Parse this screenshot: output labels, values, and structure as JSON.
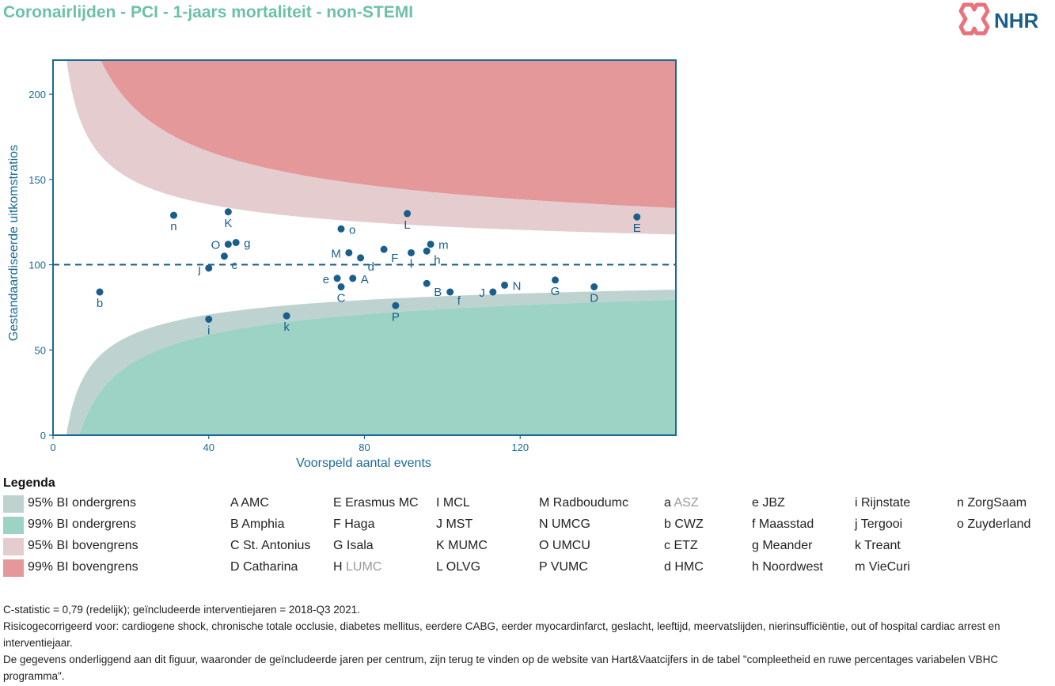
{
  "title": "Coronairlijden - PCI - 1-jaars mortaliteit - non-STEMI",
  "logo": {
    "text": "NHR"
  },
  "colors": {
    "title": "#6cc1a9",
    "point": "#1a5f8c",
    "axis": "#1a6a94",
    "band95_lower": "#bed3cf",
    "band99_lower": "#9dd3c4",
    "band95_upper": "#e5cccf",
    "band99_upper": "#e49899",
    "logo_red": "#e8737c",
    "logo_blue": "#1a5f8c"
  },
  "chart_data": {
    "type": "scatter",
    "xlabel": "Voorspeld aantal events",
    "ylabel": "Gestandaardiseerde uitkomstratios",
    "xlim": [
      0,
      160
    ],
    "ylim": [
      0,
      220
    ],
    "xticks": [
      0,
      40,
      80,
      120
    ],
    "yticks": [
      0,
      50,
      100,
      150,
      200
    ],
    "reference_line": 100,
    "points": [
      {
        "label": "n",
        "x": 31,
        "y": 129,
        "label_pos": "below"
      },
      {
        "label": "K",
        "x": 45,
        "y": 131,
        "label_pos": "below"
      },
      {
        "label": "L",
        "x": 91,
        "y": 130,
        "label_pos": "below"
      },
      {
        "label": "E",
        "x": 150,
        "y": 128,
        "label_pos": "below"
      },
      {
        "label": "o",
        "x": 74,
        "y": 121,
        "label_pos": "right"
      },
      {
        "label": "O",
        "x": 45,
        "y": 112,
        "label_pos": "left"
      },
      {
        "label": "g",
        "x": 47,
        "y": 113,
        "label_pos": "right"
      },
      {
        "label": "m",
        "x": 97,
        "y": 112,
        "label_pos": "right"
      },
      {
        "label": "F",
        "x": 85,
        "y": 109,
        "label_pos": "below-right"
      },
      {
        "label": "M",
        "x": 76,
        "y": 107,
        "label_pos": "left"
      },
      {
        "label": "d",
        "x": 79,
        "y": 104,
        "label_pos": "below-right"
      },
      {
        "label": "l",
        "x": 92,
        "y": 107,
        "label_pos": "below"
      },
      {
        "label": "h",
        "x": 96,
        "y": 108,
        "label_pos": "below-right"
      },
      {
        "label": "c",
        "x": 44,
        "y": 105,
        "label_pos": "below-right"
      },
      {
        "label": "j",
        "x": 40,
        "y": 98,
        "label_pos": "left"
      },
      {
        "label": "e",
        "x": 73,
        "y": 92,
        "label_pos": "left"
      },
      {
        "label": "A",
        "x": 77,
        "y": 92,
        "label_pos": "right"
      },
      {
        "label": "C",
        "x": 74,
        "y": 87,
        "label_pos": "below"
      },
      {
        "label": "B",
        "x": 96,
        "y": 89,
        "label_pos": "below-right"
      },
      {
        "label": "f",
        "x": 102,
        "y": 84,
        "label_pos": "below-right"
      },
      {
        "label": "J",
        "x": 113,
        "y": 84,
        "label_pos": "left"
      },
      {
        "label": "N",
        "x": 116,
        "y": 88,
        "label_pos": "right"
      },
      {
        "label": "G",
        "x": 129,
        "y": 91,
        "label_pos": "below"
      },
      {
        "label": "D",
        "x": 139,
        "y": 87,
        "label_pos": "below"
      },
      {
        "label": "b",
        "x": 12,
        "y": 84,
        "label_pos": "below"
      },
      {
        "label": "P",
        "x": 88,
        "y": 76,
        "label_pos": "below"
      },
      {
        "label": "i",
        "x": 40,
        "y": 68,
        "label_pos": "below"
      },
      {
        "label": "k",
        "x": 60,
        "y": 70,
        "label_pos": "below"
      }
    ]
  },
  "legend": {
    "title": "Legenda",
    "bands": [
      {
        "label": "95% BI ondergrens",
        "color": "#bed3cf"
      },
      {
        "label": "99% BI ondergrens",
        "color": "#9dd3c4"
      },
      {
        "label": "95% BI bovengrens",
        "color": "#e5cccf"
      },
      {
        "label": "99% BI bovengrens",
        "color": "#e49899"
      }
    ],
    "hospitals": [
      [
        {
          "code": "A",
          "name": "AMC"
        },
        {
          "code": "B",
          "name": "Amphia"
        },
        {
          "code": "C",
          "name": "St. Antonius"
        },
        {
          "code": "D",
          "name": "Catharina"
        }
      ],
      [
        {
          "code": "E",
          "name": "Erasmus MC"
        },
        {
          "code": "F",
          "name": "Haga"
        },
        {
          "code": "G",
          "name": "Isala"
        },
        {
          "code": "H",
          "name": "LUMC",
          "grey": true
        }
      ],
      [
        {
          "code": "I",
          "name": "MCL"
        },
        {
          "code": "J",
          "name": "MST"
        },
        {
          "code": "K",
          "name": "MUMC"
        },
        {
          "code": "L",
          "name": "OLVG"
        }
      ],
      [
        {
          "code": "M",
          "name": "Radboudumc"
        },
        {
          "code": "N",
          "name": "UMCG"
        },
        {
          "code": "O",
          "name": "UMCU"
        },
        {
          "code": "P",
          "name": "VUMC"
        }
      ],
      [
        {
          "code": "a",
          "name": "ASZ",
          "grey": true
        },
        {
          "code": "b",
          "name": "CWZ"
        },
        {
          "code": "c",
          "name": "ETZ"
        },
        {
          "code": "d",
          "name": "HMC"
        }
      ],
      [
        {
          "code": "e",
          "name": "JBZ"
        },
        {
          "code": "f",
          "name": "Maasstad"
        },
        {
          "code": "g",
          "name": "Meander"
        },
        {
          "code": "h",
          "name": "Noordwest"
        }
      ],
      [
        {
          "code": "i",
          "name": "Rijnstate"
        },
        {
          "code": "j",
          "name": "Tergooi"
        },
        {
          "code": "k",
          "name": "Treant"
        },
        {
          "code": "m",
          "name": "VieCuri"
        }
      ],
      [
        {
          "code": "n",
          "name": "ZorgSaam"
        },
        {
          "code": "o",
          "name": "Zuyderland"
        }
      ]
    ]
  },
  "footnotes": [
    "C-statistic =  0,79 (redelijk); geïncludeerde interventiejaren = 2018-Q3 2021.",
    "Risicogecorrigeerd voor: cardiogene shock, chronische totale occlusie, diabetes mellitus, eerdere CABG, eerder myocardinfarct, geslacht, leeftijd, meervatslijden, nierinsufficiëntie, out of hospital cardiac arrest en interventiejaar.",
    "De gegevens onderliggend aan dit figuur, waaronder de geïncludeerde jaren per centrum, zijn terug te vinden op de website van Hart&Vaatcijfers in de tabel \"compleetheid en ruwe percentages variabelen VBHC programma\"."
  ]
}
